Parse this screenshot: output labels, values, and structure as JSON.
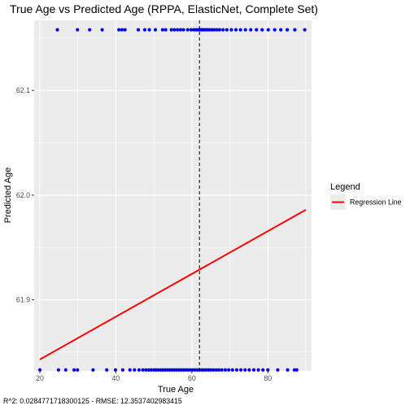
{
  "chart_data": {
    "type": "scatter",
    "title": "True Age vs Predicted Age (RPPA, ElasticNet, Complete Set)",
    "xlabel": "True Age",
    "ylabel": "Predicted Age",
    "xlim": [
      18.5,
      91.5
    ],
    "ylim": [
      61.832,
      62.167
    ],
    "x_ticks": [
      20,
      40,
      60,
      80
    ],
    "x_tick_labels": [
      "20",
      "40",
      "60",
      "80"
    ],
    "y_ticks": [
      61.9,
      62.0,
      62.1
    ],
    "y_tick_labels": [
      "61.9",
      "62.0",
      "62.1"
    ],
    "grid": true,
    "point_color": "#0000ff",
    "series": [
      {
        "y": 62.158,
        "x": [
          24.6,
          29.9,
          33.1,
          36.4,
          40.8,
          41.6,
          42.4,
          45.9,
          47.6,
          48.8,
          50.4,
          52.3,
          53.1,
          54.6,
          55.4,
          56.2,
          57.0,
          57.8,
          58.9,
          59.8,
          60.5,
          61.1,
          61.6,
          62.0,
          62.4,
          62.8,
          63.2,
          63.7,
          64.2,
          64.7,
          65.3,
          65.9,
          66.6,
          67.3,
          68.2,
          69.2,
          70.4,
          71.6,
          72.8,
          74.1,
          75.5,
          77.0,
          78.5,
          80.1,
          81.8,
          83.4,
          85.1,
          87.1,
          89.7
        ]
      },
      {
        "y": 61.833,
        "x": [
          20.0,
          24.9,
          26.8,
          29.0,
          29.9,
          34.0,
          37.6,
          39.9,
          41.8,
          43.7,
          44.9,
          46.1,
          47.1,
          47.9,
          48.6,
          49.3,
          50.0,
          50.6,
          51.2,
          51.8,
          52.4,
          53.0,
          53.6,
          54.2,
          54.8,
          55.4,
          56.0,
          56.6,
          57.2,
          57.8,
          58.4,
          59.0,
          59.6,
          60.2,
          60.8,
          61.4,
          62.0,
          62.6,
          63.2,
          63.8,
          64.4,
          65.0,
          65.7,
          66.4,
          67.1,
          67.9,
          68.8,
          69.7,
          70.7,
          71.8,
          72.9,
          74.0,
          75.1,
          76.3,
          77.5,
          78.7,
          80.0,
          82.6,
          85.2,
          87.0,
          87.6
        ]
      }
    ],
    "regression_line": {
      "name": "Regression Line",
      "color": "#ff0000",
      "x": [
        20,
        90
      ],
      "y": [
        61.843,
        61.986
      ]
    },
    "vline": {
      "x": 62,
      "style": "dashed",
      "color": "#000000"
    },
    "legend": {
      "title": "Legend",
      "position": "right",
      "entries": [
        {
          "label": "Regression Line",
          "color": "#ff0000"
        }
      ]
    },
    "caption": "R^2: 0.0284771718300125 - RMSE: 12.3537402983415"
  }
}
